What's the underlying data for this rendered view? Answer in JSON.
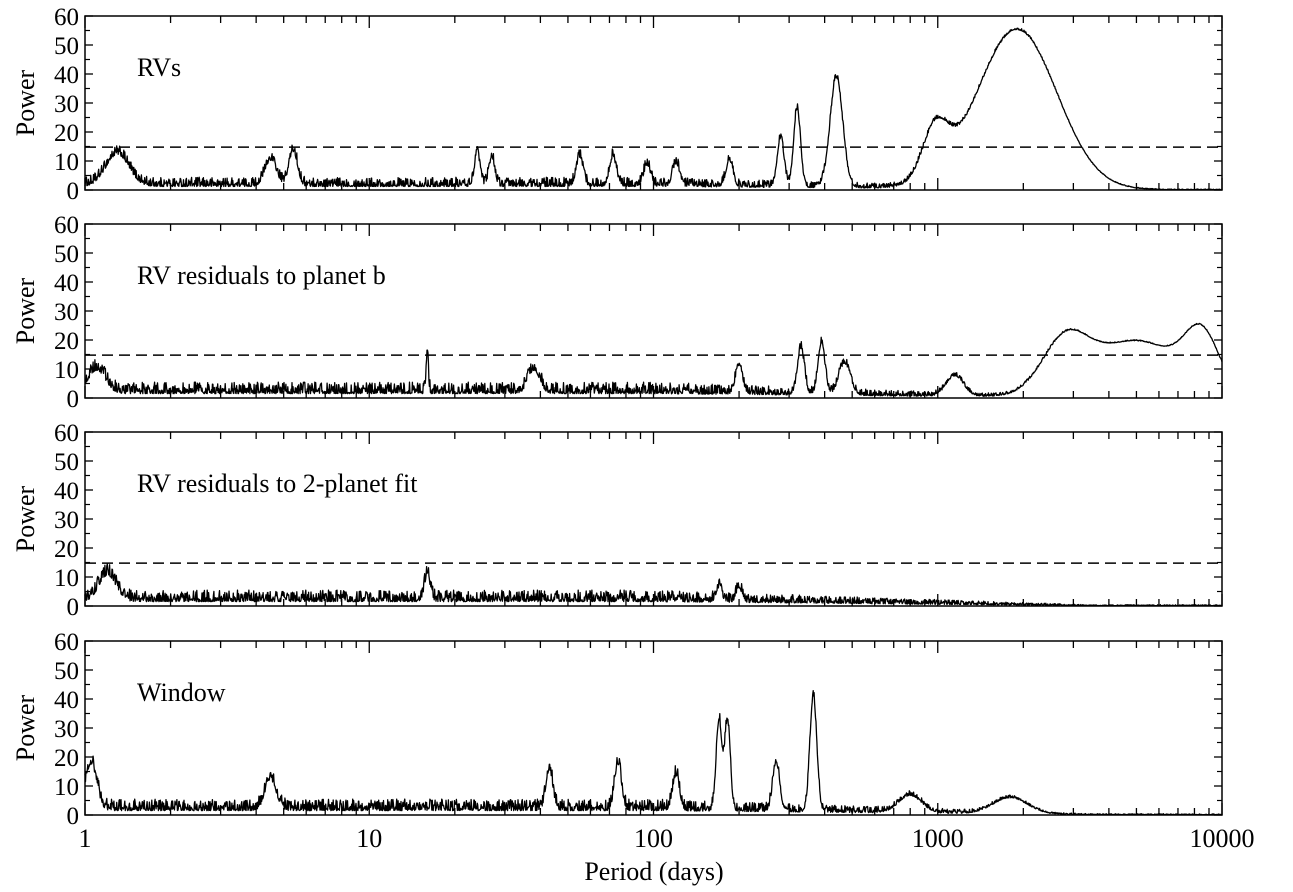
{
  "chart_data": [
    {
      "type": "line",
      "title": "RVs",
      "xlabel": "",
      "ylabel": "Power",
      "xscale": "log",
      "xlim": [
        1,
        10000
      ],
      "ylim": [
        0,
        60
      ],
      "yticks": [
        0,
        10,
        20,
        30,
        40,
        50,
        60
      ],
      "threshold": 14.8,
      "baseline_noise": 2.0,
      "peaks": [
        {
          "x": 1.3,
          "y": 11,
          "w": 0.04
        },
        {
          "x": 4.5,
          "y": 9,
          "w": 0.02
        },
        {
          "x": 5.4,
          "y": 12,
          "w": 0.015
        },
        {
          "x": 24,
          "y": 11,
          "w": 0.01
        },
        {
          "x": 27,
          "y": 10,
          "w": 0.01
        },
        {
          "x": 55,
          "y": 10,
          "w": 0.012
        },
        {
          "x": 72,
          "y": 10,
          "w": 0.012
        },
        {
          "x": 95,
          "y": 7,
          "w": 0.012
        },
        {
          "x": 120,
          "y": 8,
          "w": 0.012
        },
        {
          "x": 185,
          "y": 9,
          "w": 0.012
        },
        {
          "x": 280,
          "y": 17,
          "w": 0.012
        },
        {
          "x": 320,
          "y": 27,
          "w": 0.012
        },
        {
          "x": 440,
          "y": 38,
          "w": 0.022
        },
        {
          "x": 980,
          "y": 17,
          "w": 0.045
        },
        {
          "x": 1900,
          "y": 55,
          "w": 0.14
        }
      ]
    },
    {
      "type": "line",
      "title": "RV residuals to planet b",
      "xlabel": "",
      "ylabel": "Power",
      "xscale": "log",
      "xlim": [
        1,
        10000
      ],
      "ylim": [
        0,
        60
      ],
      "yticks": [
        0,
        10,
        20,
        30,
        40,
        50,
        60
      ],
      "threshold": 14.8,
      "baseline_noise": 2.5,
      "peaks": [
        {
          "x": 1.1,
          "y": 8,
          "w": 0.03
        },
        {
          "x": 16,
          "y": 14,
          "w": 0.004
        },
        {
          "x": 38,
          "y": 8,
          "w": 0.02
        },
        {
          "x": 200,
          "y": 10,
          "w": 0.012
        },
        {
          "x": 330,
          "y": 16,
          "w": 0.012
        },
        {
          "x": 390,
          "y": 18,
          "w": 0.012
        },
        {
          "x": 470,
          "y": 11,
          "w": 0.02
        },
        {
          "x": 1150,
          "y": 7,
          "w": 0.03
        },
        {
          "x": 2800,
          "y": 17,
          "w": 0.08
        },
        {
          "x": 5000,
          "y": 19.5,
          "w": 0.16
        },
        {
          "x": 8500,
          "y": 18,
          "w": 0.06
        }
      ]
    },
    {
      "type": "line",
      "title": "RV residuals to 2-planet fit",
      "xlabel": "",
      "ylabel": "Power",
      "xscale": "log",
      "xlim": [
        1,
        10000
      ],
      "ylim": [
        0,
        60
      ],
      "yticks": [
        0,
        10,
        20,
        30,
        40,
        50,
        60
      ],
      "threshold": 14.8,
      "baseline_noise": 2.5,
      "peaks": [
        {
          "x": 1.2,
          "y": 9,
          "w": 0.03
        },
        {
          "x": 16,
          "y": 9,
          "w": 0.01
        },
        {
          "x": 170,
          "y": 5,
          "w": 0.01
        },
        {
          "x": 200,
          "y": 5,
          "w": 0.01
        }
      ]
    },
    {
      "type": "line",
      "title": "Window",
      "xlabel": "Period (days)",
      "ylabel": "Power",
      "xscale": "log",
      "xlim": [
        1,
        10000
      ],
      "ylim": [
        0,
        60
      ],
      "xticks": [
        1,
        10,
        100,
        1000,
        10000
      ],
      "xticklabels": [
        "1",
        "10",
        "100",
        "1000",
        "10000"
      ],
      "yticks": [
        0,
        10,
        20,
        30,
        40,
        50,
        60
      ],
      "baseline_noise": 2.5,
      "peaks": [
        {
          "x": 1.05,
          "y": 16,
          "w": 0.02
        },
        {
          "x": 4.5,
          "y": 10,
          "w": 0.02
        },
        {
          "x": 43,
          "y": 14,
          "w": 0.012
        },
        {
          "x": 75,
          "y": 16,
          "w": 0.012
        },
        {
          "x": 120,
          "y": 12,
          "w": 0.012
        },
        {
          "x": 170,
          "y": 31,
          "w": 0.01
        },
        {
          "x": 182,
          "y": 31,
          "w": 0.01
        },
        {
          "x": 270,
          "y": 17,
          "w": 0.012
        },
        {
          "x": 365,
          "y": 40,
          "w": 0.012
        },
        {
          "x": 800,
          "y": 6,
          "w": 0.04
        },
        {
          "x": 1800,
          "y": 5.5,
          "w": 0.06
        }
      ]
    }
  ]
}
